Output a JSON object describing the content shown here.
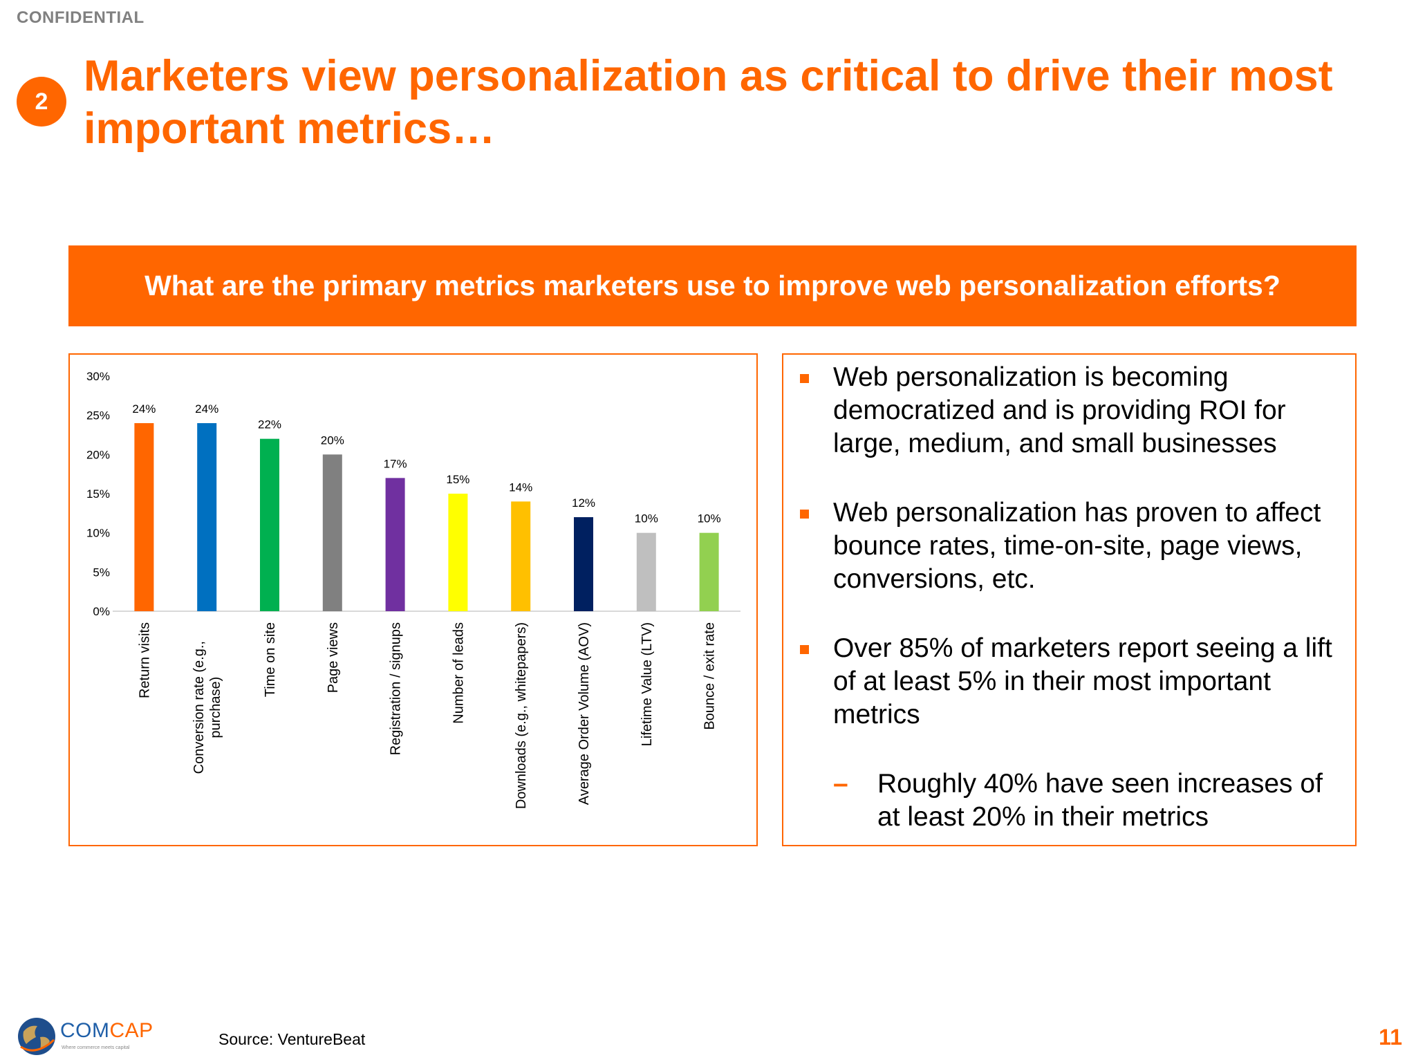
{
  "header": {
    "confidential": "CONFIDENTIAL",
    "step_number": "2",
    "title": "Marketers view personalization as critical to drive their most important metrics…"
  },
  "question": "What are the primary metrics marketers use to improve web personalization efforts?",
  "chart_data": {
    "type": "bar",
    "title": "",
    "xlabel": "",
    "ylabel": "",
    "ylim": [
      0,
      30
    ],
    "yticks": [
      "30%",
      "25%",
      "20%",
      "15%",
      "10%",
      "5%",
      "0%"
    ],
    "grid": false,
    "legend": "none",
    "categories": [
      "Return visits",
      "Conversion rate (e.g., purchase)",
      "Time on site",
      "Page views",
      "Registration / signups",
      "Number of leads",
      "Downloads (e.g., whitepapers)",
      "Average Order Volume (AOV)",
      "Lifetime Value (LTV)",
      "Bounce / exit rate"
    ],
    "category_label_lines": [
      [
        "Return visits"
      ],
      [
        "Conversion rate (e.g.,",
        "purchase)"
      ],
      [
        "Time on site"
      ],
      [
        "Page views"
      ],
      [
        "Registration / signups"
      ],
      [
        "Number of leads"
      ],
      [
        "Downloads (e.g., whitepapers)"
      ],
      [
        "Average Order Volume (AOV)"
      ],
      [
        "Lifetime Value (LTV)"
      ],
      [
        "Bounce / exit rate"
      ]
    ],
    "values": [
      24,
      24,
      22,
      20,
      17,
      15,
      14,
      12,
      10,
      10
    ],
    "data_labels": [
      "24%",
      "24%",
      "22%",
      "20%",
      "17%",
      "15%",
      "14%",
      "12%",
      "10%",
      "10%"
    ],
    "colors": [
      "#ff6600",
      "#0070c0",
      "#00b050",
      "#808080",
      "#7030a0",
      "#ffff00",
      "#ffc000",
      "#002060",
      "#bfbfbf",
      "#92d050"
    ]
  },
  "notes": {
    "bullets": [
      "Web personalization is becoming democratized and is providing ROI for large, medium, and small businesses",
      "Web personalization has proven to affect bounce rates, time-on-site, page views, conversions, etc.",
      "Over 85% of marketers report seeing a lift of at least 5% in their most important metrics"
    ],
    "sub_bullet": "Roughly 40% have seen increases of at least 20% in their metrics"
  },
  "footer": {
    "logo_text_1": "COM",
    "logo_text_2": "CAP",
    "logo_tagline": "Where commerce meets capital",
    "source": "Source: VentureBeat",
    "page_number": "11"
  },
  "colors": {
    "accent": "#ff6600",
    "logo_blue": "#1f5fa8"
  }
}
